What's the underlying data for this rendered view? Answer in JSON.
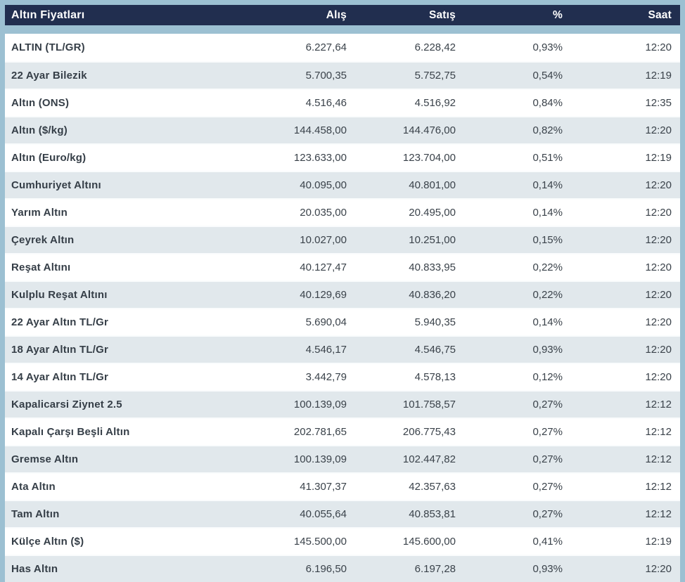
{
  "table": {
    "title": "Altın Fiyatları",
    "columns": [
      "Alış",
      "Satış",
      "%",
      "Saat"
    ],
    "rows": [
      {
        "name": "ALTIN (TL/GR)",
        "buy": "6.227,64",
        "sell": "6.228,42",
        "pct": "0,93%",
        "time": "12:20"
      },
      {
        "name": "22 Ayar Bilezik",
        "buy": "5.700,35",
        "sell": "5.752,75",
        "pct": "0,54%",
        "time": "12:19"
      },
      {
        "name": "Altın (ONS)",
        "buy": "4.516,46",
        "sell": "4.516,92",
        "pct": "0,84%",
        "time": "12:35"
      },
      {
        "name": "Altın ($/kg)",
        "buy": "144.458,00",
        "sell": "144.476,00",
        "pct": "0,82%",
        "time": "12:20"
      },
      {
        "name": "Altın (Euro/kg)",
        "buy": "123.633,00",
        "sell": "123.704,00",
        "pct": "0,51%",
        "time": "12:19"
      },
      {
        "name": "Cumhuriyet Altını",
        "buy": "40.095,00",
        "sell": "40.801,00",
        "pct": "0,14%",
        "time": "12:20"
      },
      {
        "name": "Yarım Altın",
        "buy": "20.035,00",
        "sell": "20.495,00",
        "pct": "0,14%",
        "time": "12:20"
      },
      {
        "name": "Çeyrek Altın",
        "buy": "10.027,00",
        "sell": "10.251,00",
        "pct": "0,15%",
        "time": "12:20"
      },
      {
        "name": "Reşat Altını",
        "buy": "40.127,47",
        "sell": "40.833,95",
        "pct": "0,22%",
        "time": "12:20"
      },
      {
        "name": "Kulplu Reşat Altını",
        "buy": "40.129,69",
        "sell": "40.836,20",
        "pct": "0,22%",
        "time": "12:20"
      },
      {
        "name": "22 Ayar Altın TL/Gr",
        "buy": "5.690,04",
        "sell": "5.940,35",
        "pct": "0,14%",
        "time": "12:20"
      },
      {
        "name": "18 Ayar Altın TL/Gr",
        "buy": "4.546,17",
        "sell": "4.546,75",
        "pct": "0,93%",
        "time": "12:20"
      },
      {
        "name": "14 Ayar Altın TL/Gr",
        "buy": "3.442,79",
        "sell": "4.578,13",
        "pct": "0,12%",
        "time": "12:20"
      },
      {
        "name": "Kapalicarsi Ziynet 2.5",
        "buy": "100.139,09",
        "sell": "101.758,57",
        "pct": "0,27%",
        "time": "12:12"
      },
      {
        "name": "Kapalı Çarşı Beşli Altın",
        "buy": "202.781,65",
        "sell": "206.775,43",
        "pct": "0,27%",
        "time": "12:12"
      },
      {
        "name": "Gremse Altın",
        "buy": "100.139,09",
        "sell": "102.447,82",
        "pct": "0,27%",
        "time": "12:12"
      },
      {
        "name": "Ata Altın",
        "buy": "41.307,37",
        "sell": "42.357,63",
        "pct": "0,27%",
        "time": "12:12"
      },
      {
        "name": "Tam Altın",
        "buy": "40.055,64",
        "sell": "40.853,81",
        "pct": "0,27%",
        "time": "12:12"
      },
      {
        "name": "Külçe Altın ($)",
        "buy": "145.500,00",
        "sell": "145.600,00",
        "pct": "0,41%",
        "time": "12:19"
      },
      {
        "name": "Has Altın",
        "buy": "6.196,50",
        "sell": "6.197,28",
        "pct": "0,93%",
        "time": "12:20"
      }
    ]
  },
  "colors": {
    "frame": "#9cc0d2",
    "header_bar": "#212e4f",
    "header_text": "#ffffff",
    "row_white": "#ffffff",
    "row_gray": "#e1e8ec",
    "label_text": "#353e47",
    "number_text": "#3a424a"
  }
}
